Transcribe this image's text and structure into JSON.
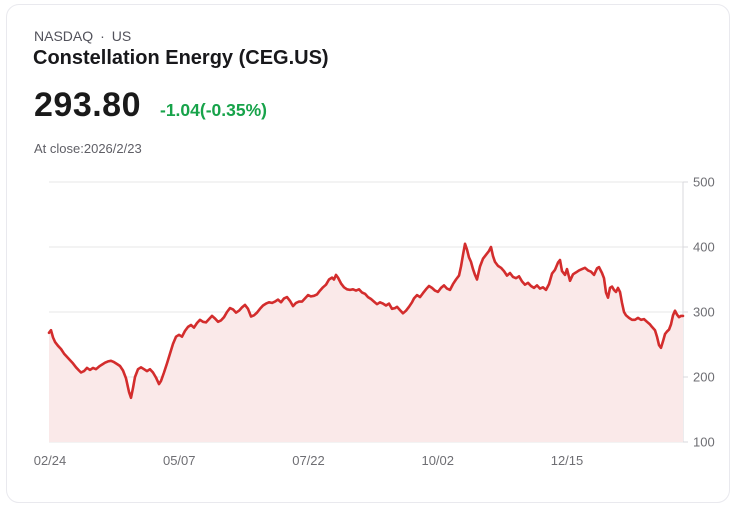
{
  "header": {
    "exchange": "NASDAQ",
    "separator": "·",
    "region": "US",
    "title": "Constellation Energy (CEG.US)",
    "price": "293.80",
    "change": "-1.04(-0.35%)",
    "close_label": "At close:2026/2/23"
  },
  "colors": {
    "line": "#d32d2d",
    "fill": "#fae9e9",
    "change_green": "#17a34a",
    "grid": "#e7e7e7",
    "axis": "#d9d9dd",
    "axis_text": "#6e6e73"
  },
  "chart_data": {
    "type": "line",
    "title": "CEG.US 1-year price",
    "xlabel": "",
    "ylabel": "",
    "x_ticks": [
      "02/24",
      "05/07",
      "07/22",
      "10/02",
      "12/15"
    ],
    "y_ticks": [
      500,
      400,
      300,
      200,
      100
    ],
    "ylim": [
      100,
      500
    ],
    "grid": true,
    "legend": "none",
    "series": [
      {
        "name": "CEG.US",
        "points": [
          [
            42,
            268
          ],
          [
            44,
            272
          ],
          [
            46,
            261
          ],
          [
            48,
            254
          ],
          [
            51,
            248
          ],
          [
            54,
            243
          ],
          [
            57,
            236
          ],
          [
            60,
            231
          ],
          [
            63,
            226
          ],
          [
            66,
            221
          ],
          [
            69,
            215
          ],
          [
            72,
            210
          ],
          [
            74,
            207
          ],
          [
            77,
            209
          ],
          [
            80,
            214
          ],
          [
            83,
            211
          ],
          [
            86,
            214
          ],
          [
            89,
            212
          ],
          [
            92,
            216
          ],
          [
            95,
            219
          ],
          [
            98,
            222
          ],
          [
            101,
            224
          ],
          [
            104,
            225
          ],
          [
            107,
            223
          ],
          [
            110,
            220
          ],
          [
            113,
            217
          ],
          [
            116,
            210
          ],
          [
            119,
            198
          ],
          [
            122,
            177
          ],
          [
            124,
            168
          ],
          [
            126,
            183
          ],
          [
            128,
            200
          ],
          [
            131,
            212
          ],
          [
            134,
            215
          ],
          [
            137,
            212
          ],
          [
            140,
            209
          ],
          [
            143,
            212
          ],
          [
            146,
            207
          ],
          [
            149,
            199
          ],
          [
            152,
            189
          ],
          [
            154,
            194
          ],
          [
            157,
            207
          ],
          [
            160,
            221
          ],
          [
            163,
            236
          ],
          [
            166,
            251
          ],
          [
            169,
            262
          ],
          [
            172,
            265
          ],
          [
            175,
            262
          ],
          [
            178,
            271
          ],
          [
            181,
            277
          ],
          [
            184,
            280
          ],
          [
            187,
            276
          ],
          [
            190,
            283
          ],
          [
            193,
            288
          ],
          [
            196,
            285
          ],
          [
            199,
            284
          ],
          [
            202,
            289
          ],
          [
            205,
            294
          ],
          [
            208,
            290
          ],
          [
            211,
            285
          ],
          [
            214,
            287
          ],
          [
            217,
            292
          ],
          [
            220,
            300
          ],
          [
            223,
            306
          ],
          [
            226,
            304
          ],
          [
            229,
            299
          ],
          [
            232,
            302
          ],
          [
            235,
            307
          ],
          [
            238,
            311
          ],
          [
            241,
            305
          ],
          [
            244,
            293
          ],
          [
            247,
            295
          ],
          [
            250,
            299
          ],
          [
            253,
            305
          ],
          [
            256,
            310
          ],
          [
            259,
            313
          ],
          [
            262,
            315
          ],
          [
            265,
            314
          ],
          [
            268,
            316
          ],
          [
            271,
            319
          ],
          [
            274,
            315
          ],
          [
            277,
            321
          ],
          [
            280,
            323
          ],
          [
            283,
            317
          ],
          [
            286,
            309
          ],
          [
            289,
            314
          ],
          [
            292,
            316
          ],
          [
            295,
            316
          ],
          [
            298,
            321
          ],
          [
            301,
            326
          ],
          [
            304,
            324
          ],
          [
            307,
            325
          ],
          [
            310,
            327
          ],
          [
            313,
            333
          ],
          [
            316,
            338
          ],
          [
            319,
            342
          ],
          [
            322,
            350
          ],
          [
            325,
            353
          ],
          [
            327,
            350
          ],
          [
            329,
            357
          ],
          [
            331,
            353
          ],
          [
            334,
            344
          ],
          [
            337,
            338
          ],
          [
            340,
            335
          ],
          [
            343,
            334
          ],
          [
            346,
            335
          ],
          [
            349,
            333
          ],
          [
            352,
            335
          ],
          [
            355,
            330
          ],
          [
            358,
            328
          ],
          [
            361,
            323
          ],
          [
            364,
            320
          ],
          [
            367,
            316
          ],
          [
            370,
            312
          ],
          [
            373,
            315
          ],
          [
            376,
            313
          ],
          [
            379,
            310
          ],
          [
            382,
            313
          ],
          [
            385,
            305
          ],
          [
            388,
            306
          ],
          [
            390,
            308
          ],
          [
            393,
            303
          ],
          [
            396,
            298
          ],
          [
            399,
            302
          ],
          [
            402,
            308
          ],
          [
            405,
            315
          ],
          [
            407,
            321
          ],
          [
            410,
            326
          ],
          [
            413,
            323
          ],
          [
            416,
            329
          ],
          [
            419,
            335
          ],
          [
            422,
            340
          ],
          [
            425,
            337
          ],
          [
            428,
            333
          ],
          [
            431,
            331
          ],
          [
            434,
            337
          ],
          [
            437,
            341
          ],
          [
            440,
            336
          ],
          [
            443,
            334
          ],
          [
            446,
            343
          ],
          [
            449,
            350
          ],
          [
            452,
            356
          ],
          [
            454,
            370
          ],
          [
            456,
            388
          ],
          [
            458,
            405
          ],
          [
            460,
            396
          ],
          [
            462,
            384
          ],
          [
            464,
            377
          ],
          [
            466,
            366
          ],
          [
            468,
            357
          ],
          [
            470,
            350
          ],
          [
            473,
            370
          ],
          [
            476,
            382
          ],
          [
            479,
            388
          ],
          [
            482,
            394
          ],
          [
            484,
            400
          ],
          [
            486,
            386
          ],
          [
            488,
            377
          ],
          [
            491,
            371
          ],
          [
            494,
            368
          ],
          [
            497,
            363
          ],
          [
            500,
            356
          ],
          [
            503,
            360
          ],
          [
            506,
            354
          ],
          [
            509,
            352
          ],
          [
            512,
            355
          ],
          [
            515,
            347
          ],
          [
            518,
            342
          ],
          [
            521,
            345
          ],
          [
            524,
            340
          ],
          [
            527,
            337
          ],
          [
            530,
            341
          ],
          [
            533,
            336
          ],
          [
            536,
            338
          ],
          [
            539,
            334
          ],
          [
            542,
            343
          ],
          [
            545,
            359
          ],
          [
            548,
            365
          ],
          [
            551,
            376
          ],
          [
            553,
            380
          ],
          [
            555,
            363
          ],
          [
            558,
            357
          ],
          [
            560,
            366
          ],
          [
            563,
            348
          ],
          [
            566,
            358
          ],
          [
            569,
            361
          ],
          [
            572,
            364
          ],
          [
            575,
            366
          ],
          [
            578,
            368
          ],
          [
            581,
            364
          ],
          [
            584,
            362
          ],
          [
            587,
            357
          ],
          [
            590,
            367
          ],
          [
            592,
            369
          ],
          [
            595,
            360
          ],
          [
            597,
            352
          ],
          [
            599,
            330
          ],
          [
            601,
            322
          ],
          [
            603,
            337
          ],
          [
            605,
            339
          ],
          [
            607,
            334
          ],
          [
            609,
            331
          ],
          [
            611,
            337
          ],
          [
            613,
            331
          ],
          [
            615,
            314
          ],
          [
            617,
            300
          ],
          [
            619,
            295
          ],
          [
            622,
            291
          ],
          [
            625,
            288
          ],
          [
            628,
            288
          ],
          [
            631,
            291
          ],
          [
            634,
            288
          ],
          [
            637,
            289
          ],
          [
            640,
            285
          ],
          [
            643,
            281
          ],
          [
            645,
            277
          ],
          [
            648,
            272
          ],
          [
            650,
            262
          ],
          [
            652,
            249
          ],
          [
            654,
            245
          ],
          [
            656,
            255
          ],
          [
            658,
            266
          ],
          [
            660,
            270
          ],
          [
            662,
            273
          ],
          [
            664,
            281
          ],
          [
            666,
            295
          ],
          [
            668,
            302
          ],
          [
            670,
            296
          ],
          [
            672,
            292
          ],
          [
            674,
            294
          ],
          [
            676,
            294
          ]
        ]
      }
    ]
  }
}
